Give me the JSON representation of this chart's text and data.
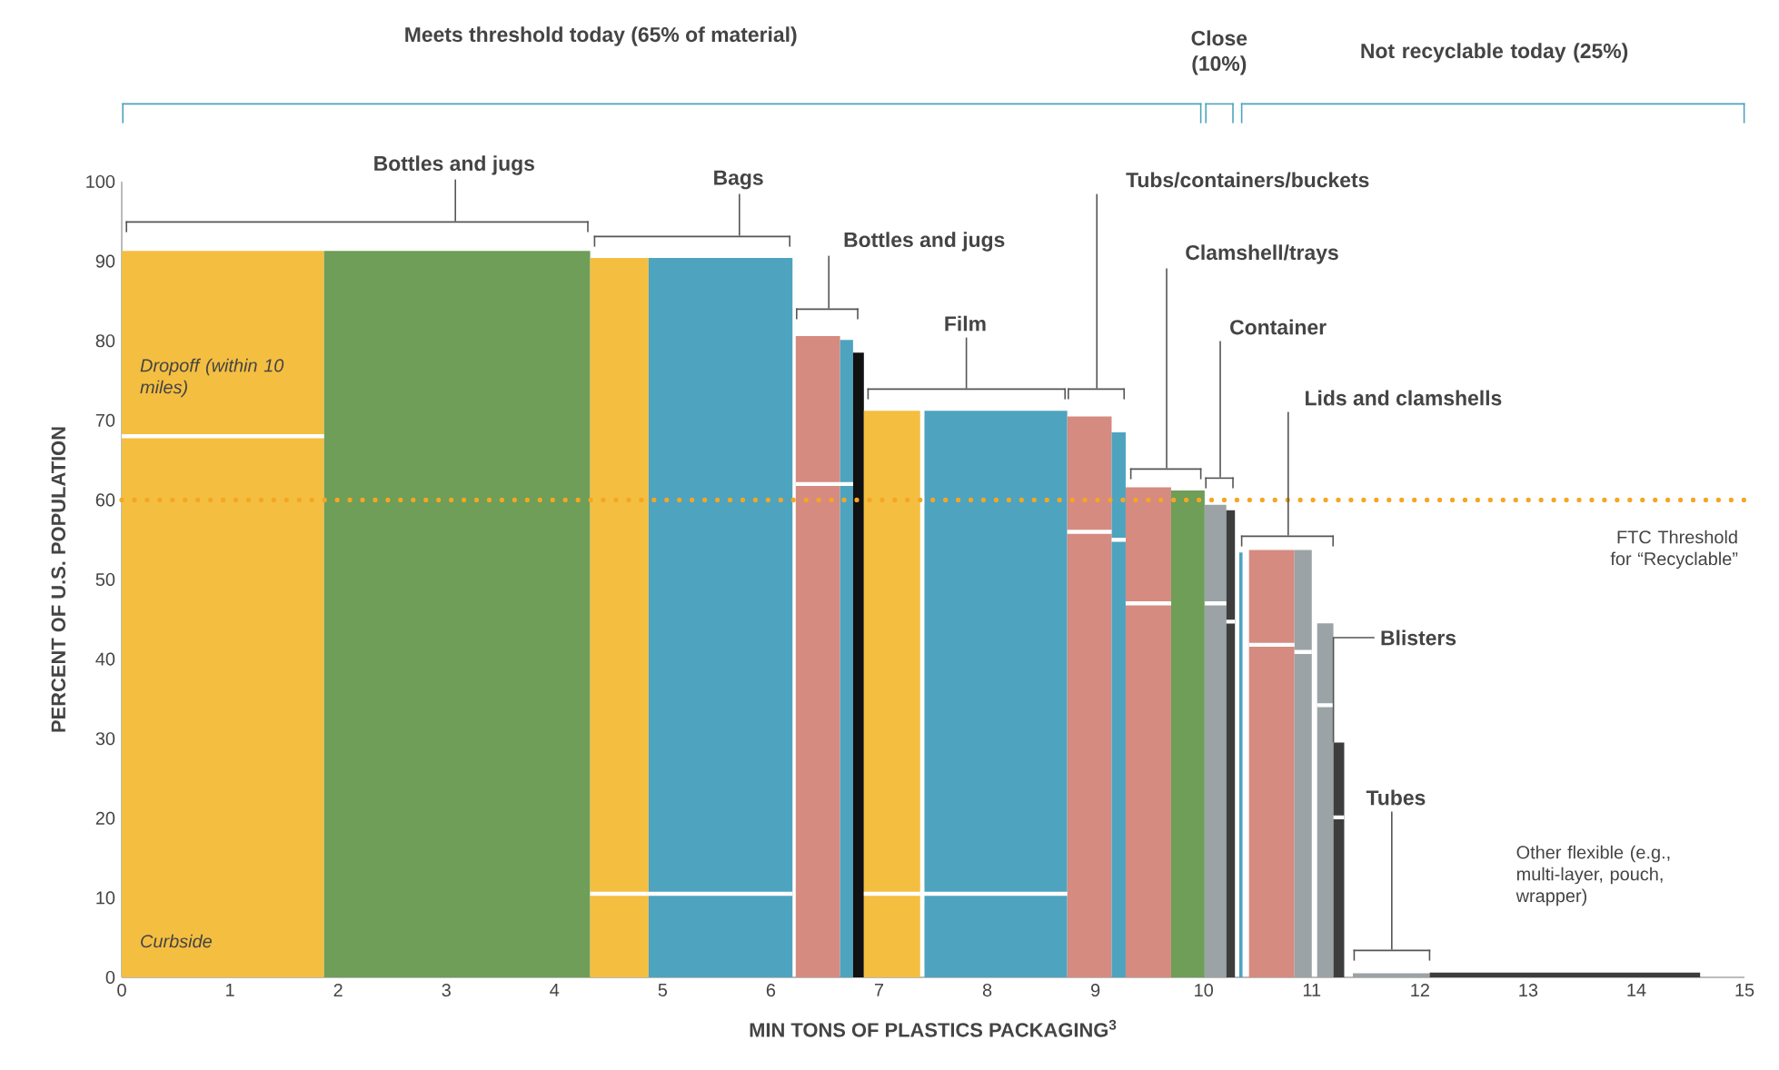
{
  "chart_data": {
    "type": "histogram",
    "xlabel": "MIN TONS OF PLASTICS PACKAGING$^{3}$",
    "ylabel": "PERCENT OF U.S. POPULATION",
    "xlim": [
      0,
      15
    ],
    "ylim": [
      0,
      100
    ],
    "xticks": [
      0,
      1,
      2,
      3,
      4,
      5,
      6,
      7,
      8,
      9,
      10,
      11,
      12,
      13,
      14,
      15
    ],
    "yticks": [
      0,
      10,
      20,
      30,
      40,
      50,
      60,
      70,
      80,
      90,
      100
    ],
    "series": [
      {
        "bins": [
          0,
          1.87,
          4.33,
          4.87,
          6.2,
          6.23,
          6.64,
          6.76,
          6.86,
          7.38,
          7.42,
          8.74,
          9.15,
          9.28,
          9.7,
          10.01,
          10.21,
          10.29,
          10.33,
          10.36,
          10.42,
          10.84,
          11.0,
          11.05,
          11.2,
          11.3,
          11.38,
          12.09,
          14.59
        ],
        "values": [
          91.3,
          91.3,
          90.4,
          90.4,
          null,
          80.6,
          80.1,
          78.5,
          71.2,
          null,
          71.2,
          70.5,
          68.5,
          61.6,
          61.2,
          59.4,
          58.7,
          null,
          53.4,
          null,
          53.7,
          53.7,
          null,
          44.5,
          29.5,
          null,
          0.5,
          0.6
        ],
        "colors": [
          "#f4be41",
          "#6e9e57",
          "#f4be41",
          "#4ea3bf",
          "#ffffff",
          "#d58b80",
          "#4ea3bf",
          "#111111",
          "#f4be41",
          "#ffffff",
          "#4ea3bf",
          "#d58b80",
          "#4ea3bf",
          "#d58b80",
          "#6e9e57",
          "#9ba3a6",
          "#3d3d3d",
          "#ffffff",
          "#4ea3bf",
          "#ffffff",
          "#d58b80",
          "#9ba3a6",
          "#ffffff",
          "#9ba3a6",
          "#3d3d3d",
          "#ffffff",
          "#9ba3a6",
          "#3d3d3d"
        ]
      },
      {
        "type": "line",
        "color": "#ffffff",
        "x": [
          0,
          1.87,
          null,
          4.33,
          6.2,
          null,
          6.23,
          6.76,
          null,
          6.86,
          8.74,
          null,
          8.74,
          9.15,
          null,
          9.15,
          9.28,
          null,
          9.28,
          9.7,
          null,
          10.01,
          10.21,
          null,
          10.21,
          10.29,
          null,
          10.42,
          10.84,
          null,
          10.84,
          11.0,
          null,
          11.05,
          11.2,
          null,
          11.2,
          11.3
        ],
        "values": [
          68,
          68,
          null,
          10.5,
          10.5,
          null,
          62,
          62,
          null,
          10.5,
          10.5,
          null,
          56,
          56,
          null,
          55,
          55,
          null,
          47,
          47,
          null,
          47,
          47,
          null,
          44.7,
          44.7,
          null,
          41.8,
          41.8,
          null,
          40.9,
          40.9,
          null,
          34.2,
          34.2,
          null,
          20.1,
          20.1
        ]
      }
    ],
    "ref_lines": [
      {
        "axis": "y",
        "value": 60,
        "label": "FTC Threshold for “Recyclable”",
        "color": "#f5a623",
        "line_style": "dotted"
      }
    ],
    "annotations": [
      "Meets threshold today (65% of material)",
      "Close (10%)",
      "Not recyclable today (25%)",
      "Bottles and jugs",
      "Bags",
      "Bottles and jugs",
      "Film",
      "Tubs/containers/buckets",
      "Clamshell/trays",
      "Container",
      "Lids and clamshells",
      {
        "text": "Blisters",
        "x": 11.2,
        "y": 29.5
      },
      "Tubes",
      "Other flexible (e.g., multi-layer, pouch, wrapper)",
      "Dropoff (within 10 miles)",
      "Curbside"
    ]
  }
}
